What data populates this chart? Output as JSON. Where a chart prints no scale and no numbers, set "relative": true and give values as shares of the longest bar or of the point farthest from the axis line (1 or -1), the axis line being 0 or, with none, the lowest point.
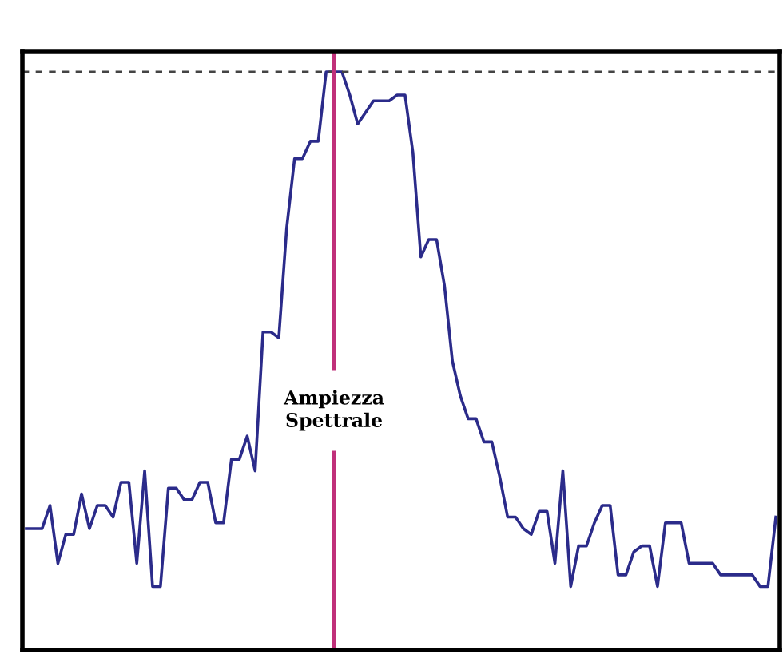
{
  "chart_data": {
    "type": "line",
    "relative": true,
    "categories": [
      null,
      null,
      null,
      null,
      null,
      null,
      null,
      null,
      null,
      null,
      null,
      null,
      null,
      null,
      null,
      null,
      null,
      null,
      null,
      null,
      null,
      null,
      null,
      null,
      null,
      null,
      null,
      null,
      null,
      null,
      null,
      null,
      null,
      null,
      null,
      null,
      null,
      null,
      null,
      null,
      null,
      null,
      null,
      null,
      null,
      null,
      null,
      null,
      null,
      null,
      null,
      null,
      null,
      null,
      null,
      null,
      null,
      null,
      null,
      null,
      null,
      null,
      null,
      null,
      null,
      null,
      null,
      null,
      null,
      null,
      null,
      null,
      null,
      null,
      null,
      null,
      null,
      null,
      null,
      null,
      null,
      null,
      null,
      null,
      null,
      null,
      null,
      null,
      null,
      null,
      null,
      null,
      null,
      null,
      null,
      null
    ],
    "series": [
      {
        "color": "#2b2b8a",
        "values": [
          0.21,
          0.21,
          0.21,
          0.25,
          0.15,
          0.2,
          0.2,
          0.27,
          0.21,
          0.25,
          0.25,
          0.23,
          0.29,
          0.29,
          0.15,
          0.31,
          0.11,
          0.11,
          0.28,
          0.28,
          0.26,
          0.26,
          0.29,
          0.29,
          0.22,
          0.22,
          0.33,
          0.33,
          0.37,
          0.31,
          0.55,
          0.55,
          0.54,
          0.73,
          0.85,
          0.85,
          0.88,
          0.88,
          1,
          1,
          1,
          0.96,
          0.91,
          0.93,
          0.95,
          0.95,
          0.95,
          0.96,
          0.96,
          0.86,
          0.68,
          0.71,
          0.71,
          0.63,
          0.5,
          0.44,
          0.4,
          0.4,
          0.36,
          0.36,
          0.3,
          0.23,
          0.23,
          0.21,
          0.2,
          0.24,
          0.24,
          0.15,
          0.31,
          0.11,
          0.18,
          0.18,
          0.22,
          0.25,
          0.25,
          0.13,
          0.13,
          0.17,
          0.18,
          0.18,
          0.11,
          0.22,
          0.22,
          0.22,
          0.15,
          0.15,
          0.15,
          0.15,
          0.13,
          0.13,
          0.13,
          0.13,
          0.13,
          0.11,
          0.11,
          0.23
        ]
      }
    ],
    "ref_lines": [
      {
        "axis": "y",
        "value": 1,
        "color": "#444444",
        "line_style": "dashed"
      }
    ],
    "annotations": [
      "Ampiezza\nSpettrale"
    ],
    "legend": false
  }
}
